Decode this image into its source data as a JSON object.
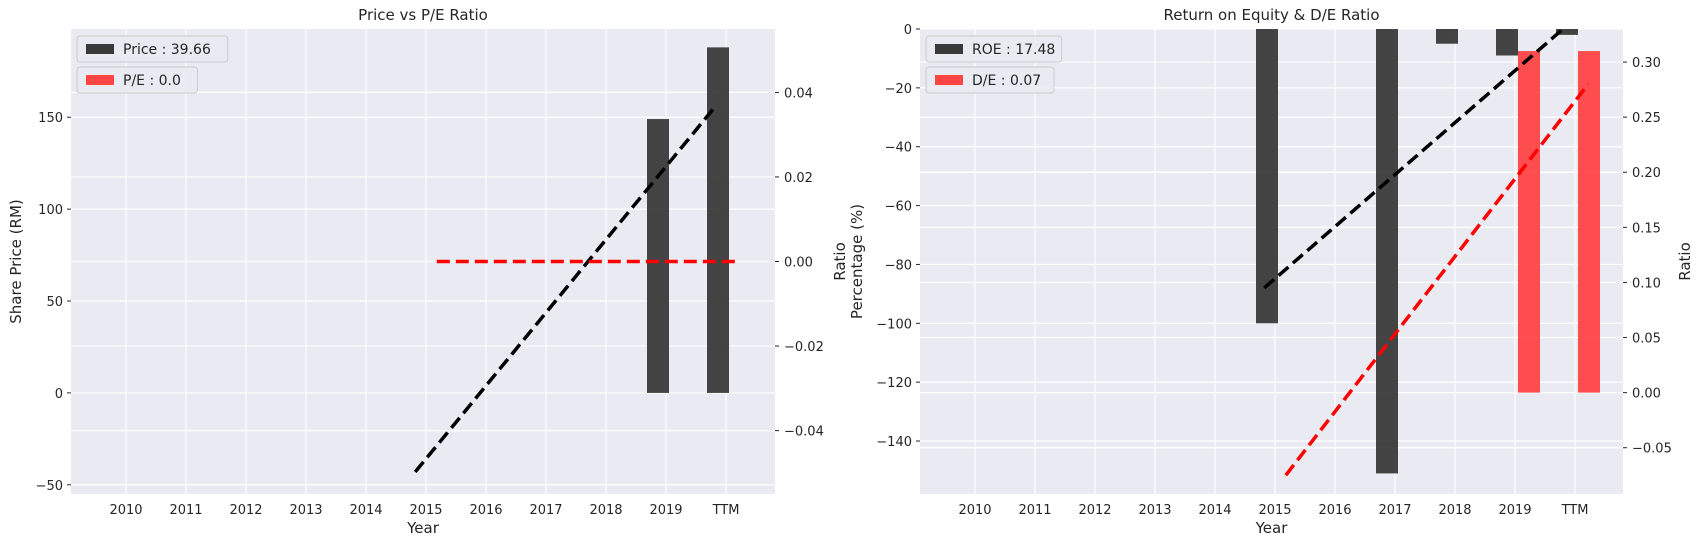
{
  "chart_data": [
    {
      "type": "bar",
      "title": "Price vs P/E Ratio",
      "xlabel": "Year",
      "ylabel": "Share Price (RM)",
      "y2label": "",
      "categories": [
        "2010",
        "2011",
        "2012",
        "2013",
        "2014",
        "2015",
        "2016",
        "2017",
        "2018",
        "2019",
        "TTM"
      ],
      "ylim": [
        -55,
        198
      ],
      "yticks": [
        -50,
        0,
        50,
        100,
        150
      ],
      "y2lim": [
        -0.055,
        0.055
      ],
      "y2ticks": [
        -0.04,
        -0.02,
        0.0,
        0.02,
        0.04
      ],
      "y2ticklabels": [
        "−0.04",
        "−0.02",
        "0.00",
        "0.02",
        "0.04"
      ],
      "bars": [
        {
          "name": "Price",
          "axis": "left",
          "color": "#3a3a3a",
          "values": [
            null,
            null,
            null,
            null,
            null,
            null,
            null,
            null,
            null,
            149,
            188
          ]
        }
      ],
      "lines": [
        {
          "axis": "left",
          "color": "#000000",
          "style": "dashed",
          "x0": 4.82,
          "y0": -43,
          "x1": 9.8,
          "y1": 155
        },
        {
          "axis": "right",
          "color": "#ff0000",
          "style": "dashed",
          "x0": 5.18,
          "y0": 0.0,
          "x1": 10.22,
          "y1": 0.0
        }
      ],
      "legend": [
        {
          "label": "Price : 39.66",
          "color": "#3a3a3a"
        },
        {
          "label": "P/E : 0.0",
          "color": "#ff4444"
        }
      ],
      "legend_position": "top-left",
      "grid": true
    },
    {
      "type": "bar",
      "title": "Return on Equity & D/E Ratio",
      "xlabel": "Year",
      "ylabel": "Percentage (%)",
      "ylabel2": "Ratio",
      "y2label": "Ratio",
      "categories": [
        "2010",
        "2011",
        "2012",
        "2013",
        "2014",
        "2015",
        "2016",
        "2017",
        "2018",
        "2019",
        "TTM"
      ],
      "ylim": [
        -158,
        0
      ],
      "yticks": [
        -140,
        -120,
        -100,
        -80,
        -60,
        -40,
        -20,
        0
      ],
      "y2lim": [
        -0.092,
        0.33
      ],
      "y2ticks": [
        -0.05,
        0.0,
        0.05,
        0.1,
        0.15,
        0.2,
        0.25,
        0.3
      ],
      "y2ticklabels": [
        "−0.05",
        "0.00",
        "0.05",
        "0.10",
        "0.15",
        "0.20",
        "0.25",
        "0.30"
      ],
      "bars": [
        {
          "name": "ROE",
          "axis": "left",
          "color": "#3a3a3a",
          "values": [
            null,
            null,
            null,
            null,
            null,
            -100,
            null,
            -151,
            -5,
            -9,
            -2
          ]
        },
        {
          "name": "D/E",
          "axis": "right",
          "color": "#ff4444",
          "values": [
            null,
            null,
            null,
            null,
            null,
            null,
            null,
            null,
            null,
            0.31,
            0.31
          ]
        }
      ],
      "lines": [
        {
          "axis": "left",
          "color": "#000000",
          "style": "dashed",
          "x0": 4.82,
          "y0": -88,
          "x1": 9.8,
          "y1": 0
        },
        {
          "axis": "right",
          "color": "#ff0000",
          "style": "dashed",
          "x0": 5.18,
          "y0": -0.075,
          "x1": 10.22,
          "y1": 0.28
        }
      ],
      "legend": [
        {
          "label": "ROE : 17.48",
          "color": "#3a3a3a"
        },
        {
          "label": "D/E : 0.07",
          "color": "#ff4444"
        }
      ],
      "legend_position": "top-left",
      "grid": true
    }
  ]
}
